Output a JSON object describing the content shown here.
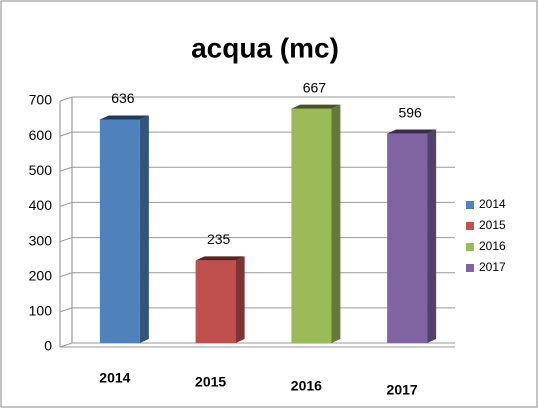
{
  "chart_data": {
    "type": "bar3d",
    "title": "acqua (mc)",
    "categories": [
      "2014",
      "2015",
      "2016",
      "2017"
    ],
    "values": [
      636,
      235,
      667,
      596
    ],
    "colors": [
      "#4f81bd",
      "#c0504d",
      "#9bbb59",
      "#8064a2"
    ],
    "ylim": [
      0,
      700
    ],
    "yticks": [
      0,
      100,
      200,
      300,
      400,
      500,
      600,
      700
    ],
    "grid": true,
    "legend": "right"
  }
}
